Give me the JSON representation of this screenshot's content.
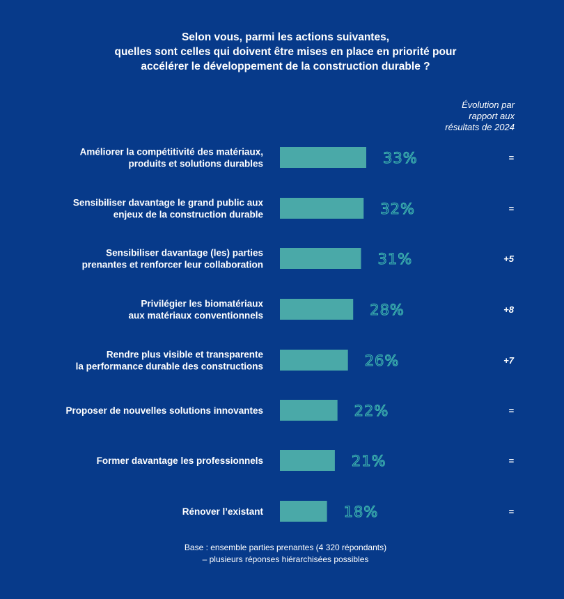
{
  "title": {
    "line1": "Selon vous, parmi les actions suivantes,",
    "line2": "quelles sont celles qui doivent être mises en place en priorité pour",
    "line3": "accélérer le développement de la construction durable ?"
  },
  "evolution_header": {
    "line1": "Évolution par",
    "line2": "rapport aux",
    "line3": "résultats de 2024"
  },
  "footnote": {
    "line1": "Base : ensemble parties prenantes (4 320 répondants)",
    "line2": "– plusieurs réponses hiérarchisées possibles"
  },
  "colors": {
    "background": "#073a8a",
    "bar": "#4aa9a8",
    "value_text": "#3fb8b0",
    "text": "#ffffff"
  },
  "chart_data": {
    "type": "bar",
    "orientation": "horizontal",
    "categories": [
      [
        "Améliorer la compétitivité des matériaux,",
        "produits et solutions durables"
      ],
      [
        "Sensibiliser davantage le grand public aux",
        "enjeux de la construction durable"
      ],
      [
        "Sensibiliser davantage (les) parties",
        "prenantes et renforcer leur collaboration"
      ],
      [
        "Privilégier les biomatériaux",
        "aux matériaux conventionnels"
      ],
      [
        "Rendre plus visible et transparente",
        "la performance durable des constructions"
      ],
      [
        "Proposer de nouvelles solutions innovantes"
      ],
      [
        "Former davantage les professionnels"
      ],
      [
        "Rénover l’existant"
      ]
    ],
    "values": [
      33,
      32,
      31,
      28,
      26,
      22,
      21,
      18
    ],
    "value_labels": [
      "33%",
      "32%",
      "31%",
      "28%",
      "26%",
      "22%",
      "21%",
      "18%"
    ],
    "evolution": [
      "=",
      "=",
      "+5",
      "+8",
      "+7",
      "=",
      "=",
      "="
    ],
    "unit": "%",
    "xlim": [
      0,
      100
    ],
    "grid": false
  }
}
